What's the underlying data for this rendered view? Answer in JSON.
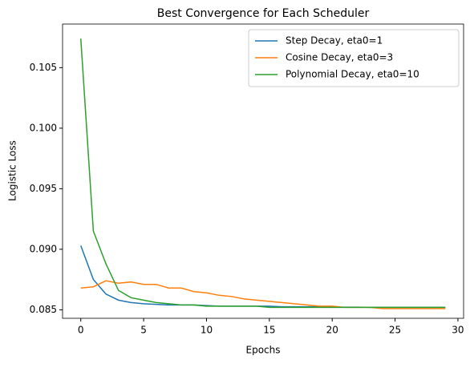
{
  "chart_data": {
    "type": "line",
    "title": "Best Convergence for Each Scheduler",
    "x_label": "Epochs",
    "y_label": "Logistic Loss",
    "x": [
      0,
      1,
      2,
      3,
      4,
      5,
      6,
      7,
      8,
      9,
      10,
      11,
      12,
      13,
      14,
      15,
      16,
      17,
      18,
      19,
      20,
      21,
      22,
      23,
      24,
      25,
      26,
      27,
      28,
      29
    ],
    "series": [
      {
        "name": "Step Decay, eta0=1",
        "color": "#1f77b4",
        "values": [
          0.0903,
          0.0875,
          0.0863,
          0.0858,
          0.0856,
          0.0855,
          0.08545,
          0.0854,
          0.0854,
          0.0854,
          0.08535,
          0.0853,
          0.0853,
          0.0853,
          0.0853,
          0.0853,
          0.08525,
          0.08525,
          0.08525,
          0.08525,
          0.08522,
          0.08522,
          0.08522,
          0.0852,
          0.0852,
          0.0852,
          0.0852,
          0.0852,
          0.0852,
          0.0852
        ]
      },
      {
        "name": "Cosine Decay, eta0=3",
        "color": "#ff7f0e",
        "values": [
          0.0868,
          0.0869,
          0.0874,
          0.0872,
          0.0873,
          0.0871,
          0.0871,
          0.0868,
          0.0868,
          0.0865,
          0.0864,
          0.0862,
          0.0861,
          0.0859,
          0.0858,
          0.0857,
          0.0856,
          0.0855,
          0.0854,
          0.0853,
          0.0853,
          0.0852,
          0.0852,
          0.0852,
          0.0851,
          0.0851,
          0.0851,
          0.0851,
          0.0851,
          0.0851
        ]
      },
      {
        "name": "Polynomial Decay, eta0=10",
        "color": "#2ca02c",
        "values": [
          0.1074,
          0.0915,
          0.0888,
          0.0866,
          0.086,
          0.0858,
          0.0856,
          0.0855,
          0.0854,
          0.0854,
          0.0853,
          0.0853,
          0.0853,
          0.0853,
          0.0853,
          0.0852,
          0.0852,
          0.0852,
          0.0852,
          0.0852,
          0.0852,
          0.0852,
          0.0852,
          0.0852,
          0.0852,
          0.0852,
          0.0852,
          0.0852,
          0.0852,
          0.0852
        ]
      }
    ],
    "xlim": [
      -1.45,
      30.45
    ],
    "ylim": [
      0.0843,
      0.1086
    ],
    "xticks": [
      0,
      5,
      10,
      15,
      20,
      25,
      30
    ],
    "yticks": [
      0.085,
      {
        "value": 0.09,
        "label": "0.090"
      },
      0.095,
      {
        "value": 0.1,
        "label": "0.100"
      },
      0.105
    ],
    "legend": "upper right",
    "grid": false
  }
}
